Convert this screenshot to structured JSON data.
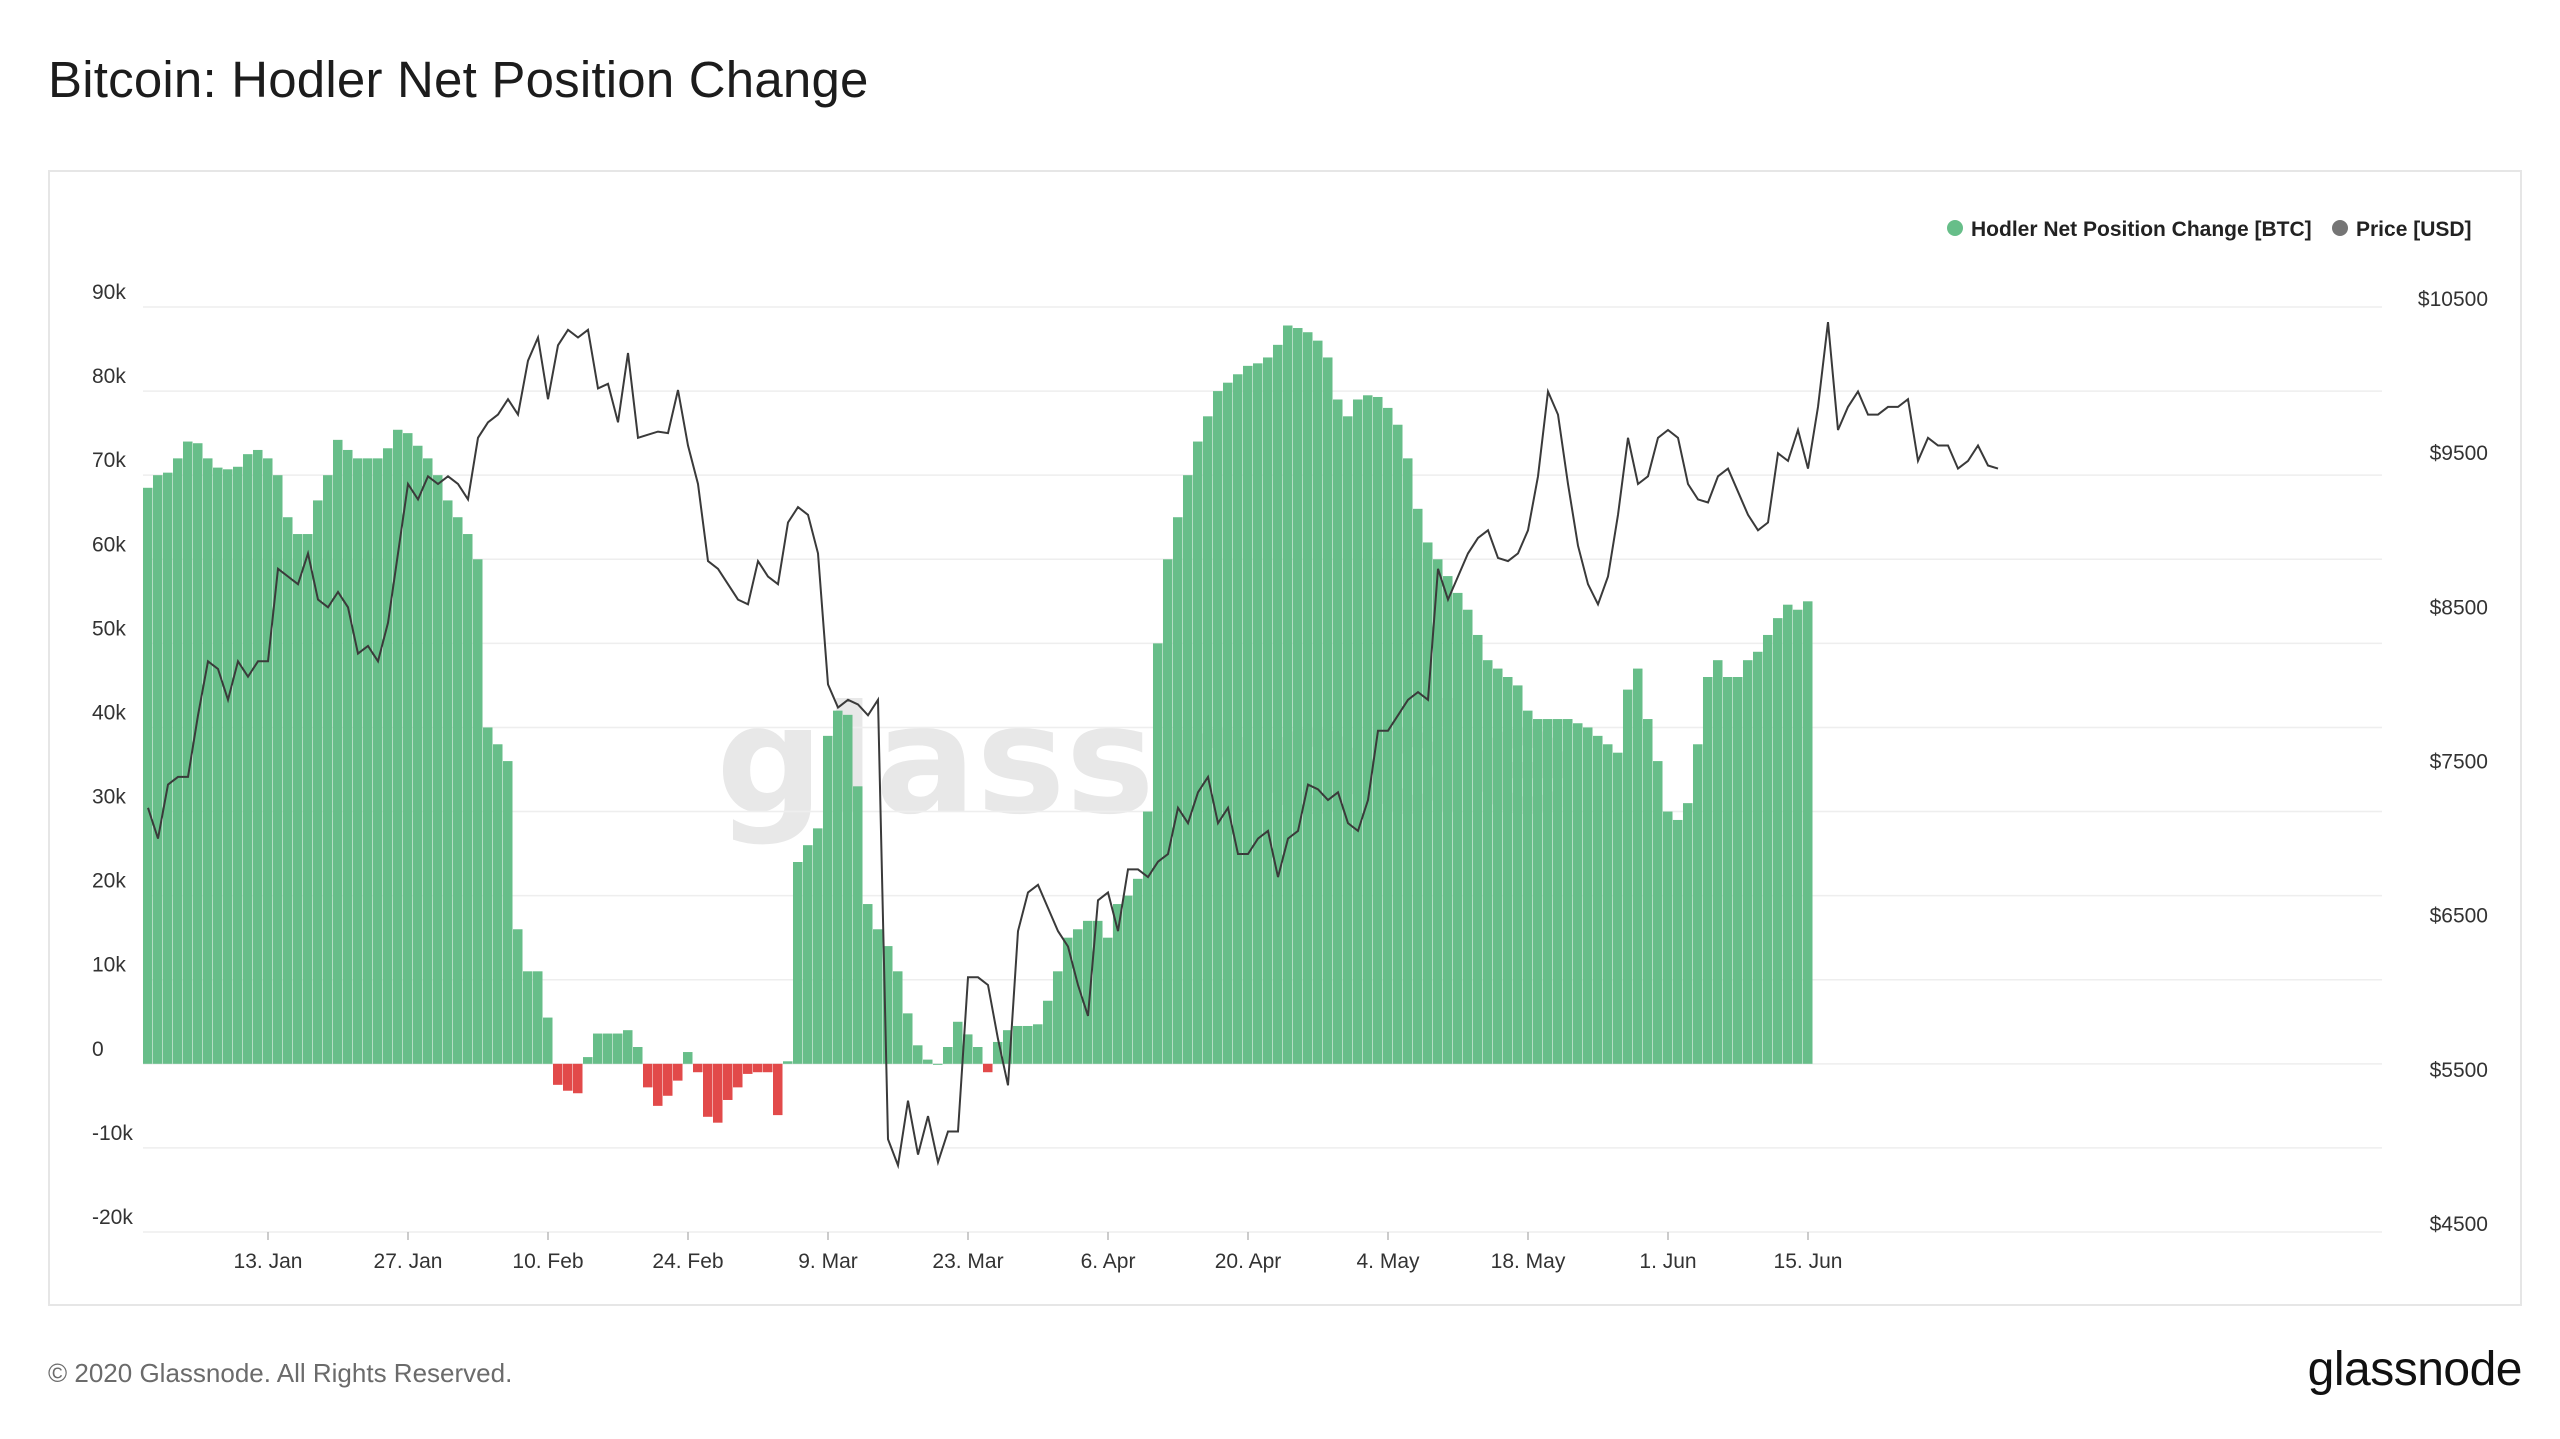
{
  "title": "Bitcoin: Hodler Net Position Change",
  "footer": {
    "copyright": "© 2020 Glassnode. All Rights Reserved.",
    "logo": "glassnode"
  },
  "watermark": "glassnode",
  "colors": {
    "positive": "#67be89",
    "negative": "#e24a4a",
    "price": "#3a3a3a",
    "grid": "#eeeeee"
  },
  "chart_data": {
    "type": "bar",
    "title": "Bitcoin: Hodler Net Position Change",
    "legend": [
      {
        "name": "Hodler Net Position Change [BTC]",
        "color": "#67be89",
        "marker": "dot"
      },
      {
        "name": "Price [USD]",
        "color": "#757575",
        "marker": "dot"
      }
    ],
    "legend_position": "top-right",
    "grid": true,
    "y_left": {
      "ticks": [
        "90k",
        "80k",
        "70k",
        "60k",
        "50k",
        "40k",
        "30k",
        "20k",
        "10k",
        "0",
        "-10k",
        "-20k"
      ],
      "range": [
        -20000,
        90000
      ]
    },
    "y_right": {
      "ticks": [
        "$10500",
        "$9500",
        "$8500",
        "$7500",
        "$6500",
        "$5500",
        "$4500"
      ],
      "range": [
        4500,
        10500
      ]
    },
    "x_ticks": [
      "13. Jan",
      "27. Jan",
      "10. Feb",
      "24. Feb",
      "9. Mar",
      "23. Mar",
      "6. Apr",
      "20. Apr",
      "4. May",
      "18. May",
      "1. Jun",
      "15. Jun"
    ],
    "start_date": "2020-01-01",
    "series": [
      {
        "name": "Hodler Net Position Change [BTC]",
        "type": "bar",
        "values": [
          68500,
          70000,
          70300,
          72000,
          74000,
          73800,
          72000,
          70900,
          70700,
          71000,
          72500,
          73000,
          72000,
          70000,
          65000,
          63000,
          63000,
          67000,
          70000,
          74200,
          73000,
          72000,
          72000,
          72000,
          73200,
          75400,
          75000,
          73500,
          72000,
          70000,
          67000,
          65000,
          63000,
          60000,
          40000,
          38000,
          36000,
          16000,
          11000,
          11000,
          5500,
          -2500,
          -3200,
          -3500,
          800,
          3600,
          3600,
          3600,
          4000,
          2000,
          -2800,
          -5000,
          -3800,
          -2000,
          1400,
          -1000,
          -6300,
          -7000,
          -4300,
          -2800,
          -1200,
          -1000,
          -1000,
          -6100,
          300,
          24000,
          26000,
          28000,
          39000,
          42000,
          41500,
          33000,
          19000,
          16000,
          14000,
          11000,
          6000,
          2200,
          500,
          0,
          2000,
          5000,
          3500,
          2000,
          -1000,
          2600,
          4000,
          4500,
          4500,
          4700,
          7500,
          11000,
          15000,
          16000,
          17000,
          17000,
          15000,
          19000,
          20000,
          22000,
          30000,
          50000,
          60000,
          65000,
          70000,
          74000,
          77000,
          80000,
          81000,
          82000,
          83000,
          83300,
          84000,
          85500,
          87800,
          87500,
          87000,
          86000,
          84000,
          79000,
          77000,
          79000,
          79500,
          79300,
          78000,
          76000,
          72000,
          66000,
          62000,
          60000,
          58000,
          56000,
          54000,
          51000,
          48000,
          47000,
          46000,
          45000,
          42000,
          41000,
          41000,
          41000,
          41000,
          40500,
          40000,
          39000,
          38000,
          37000,
          44500,
          47000,
          41000,
          36000,
          30000,
          29000,
          31000,
          38000,
          46000,
          48000,
          46000,
          46000,
          48000,
          49000,
          51000,
          53000,
          54600,
          54000,
          55000
        ]
      },
      {
        "name": "Price [USD]",
        "type": "line",
        "values": [
          7200,
          7000,
          7350,
          7400,
          7400,
          7800,
          8150,
          8100,
          7900,
          8150,
          8050,
          8150,
          8150,
          8750,
          8700,
          8650,
          8850,
          8550,
          8500,
          8600,
          8500,
          8200,
          8250,
          8150,
          8400,
          8850,
          9300,
          9200,
          9350,
          9300,
          9350,
          9300,
          9200,
          9600,
          9700,
          9750,
          9850,
          9750,
          10100,
          10250,
          9850,
          10200,
          10300,
          10250,
          10300,
          9920,
          9950,
          9700,
          10150,
          9600,
          9620,
          9640,
          9630,
          9910,
          9550,
          9300,
          8800,
          8750,
          8650,
          8550,
          8520,
          8800,
          8700,
          8650,
          9050,
          9150,
          9100,
          8850,
          8000,
          7850,
          7900,
          7870,
          7800,
          7900,
          5050,
          4880,
          5300,
          4950,
          5200,
          4900,
          5100,
          5100,
          6100,
          6100,
          6050,
          5700,
          5400,
          6400,
          6650,
          6700,
          6550,
          6400,
          6300,
          6050,
          5850,
          6600,
          6650,
          6400,
          6800,
          6800,
          6750,
          6850,
          6900,
          7200,
          7100,
          7300,
          7400,
          7100,
          7200,
          6900,
          6900,
          7000,
          7050,
          6750,
          7000,
          7050,
          7350,
          7320,
          7250,
          7300,
          7100,
          7050,
          7250,
          7700,
          7700,
          7800,
          7900,
          7950,
          7900,
          8750,
          8550,
          8700,
          8850,
          8950,
          9000,
          8820,
          8800,
          8850,
          9000,
          9350,
          9900,
          9750,
          9300,
          8900,
          8650,
          8520,
          8700,
          9100,
          9600,
          9300,
          9350,
          9600,
          9650,
          9600,
          9300,
          9200,
          9180,
          9350,
          9400,
          9250,
          9100,
          9000,
          9050,
          9500,
          9450,
          9650,
          9400,
          9800,
          10350,
          9650,
          9800,
          9900,
          9750,
          9750,
          9800,
          9800,
          9850,
          9450,
          9600,
          9550,
          9550,
          9400,
          9450,
          9550,
          9420,
          9400
        ]
      }
    ]
  }
}
